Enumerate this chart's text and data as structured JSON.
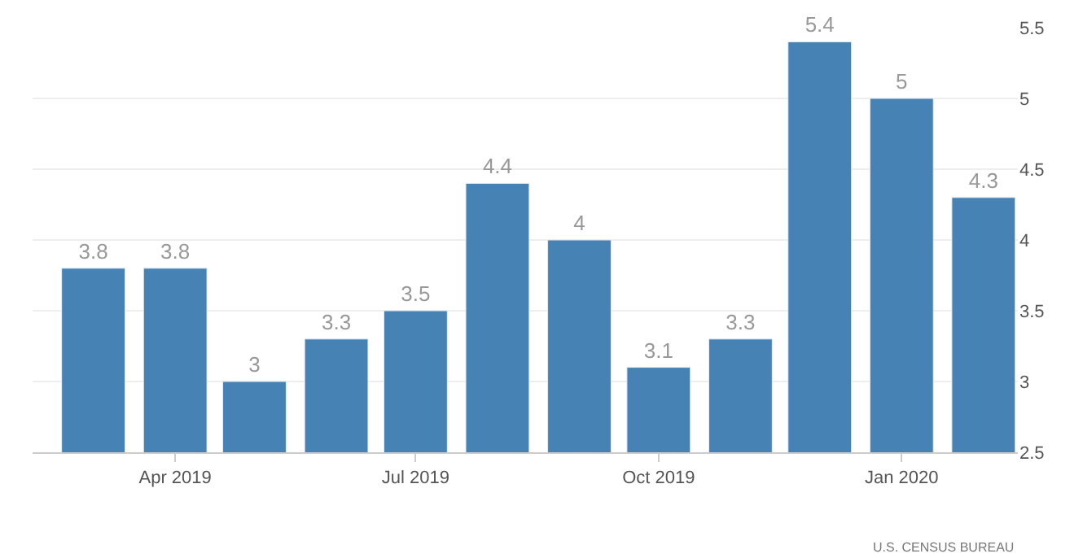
{
  "chart_data": {
    "type": "bar",
    "x": [
      "2019-03",
      "2019-04",
      "2019-05",
      "2019-06",
      "2019-07",
      "2019-08",
      "2019-09",
      "2019-10",
      "2019-11",
      "2019-12",
      "2020-01",
      "2020-02"
    ],
    "values": [
      3.8,
      3.8,
      3,
      3.3,
      3.5,
      4.4,
      4,
      3.1,
      3.3,
      5.4,
      5,
      4.3
    ],
    "color": "#4682b4",
    "data_labels": true,
    "xlim": [
      "2019-02-06",
      "2020-02-14"
    ],
    "xticks": [
      {
        "value": "2019-04",
        "label": "Apr 2019"
      },
      {
        "value": "2019-07",
        "label": "Jul 2019"
      },
      {
        "value": "2019-10",
        "label": "Oct 2019"
      },
      {
        "value": "2020-01",
        "label": "Jan 2020"
      }
    ],
    "ylim": [
      2.5,
      5.5
    ],
    "yticks": [
      2.5,
      3,
      3.5,
      4,
      4.5,
      5,
      5.5
    ],
    "grid": "y",
    "legend": false,
    "annotations": [
      "U.S. CENSUS BUREAU"
    ]
  }
}
